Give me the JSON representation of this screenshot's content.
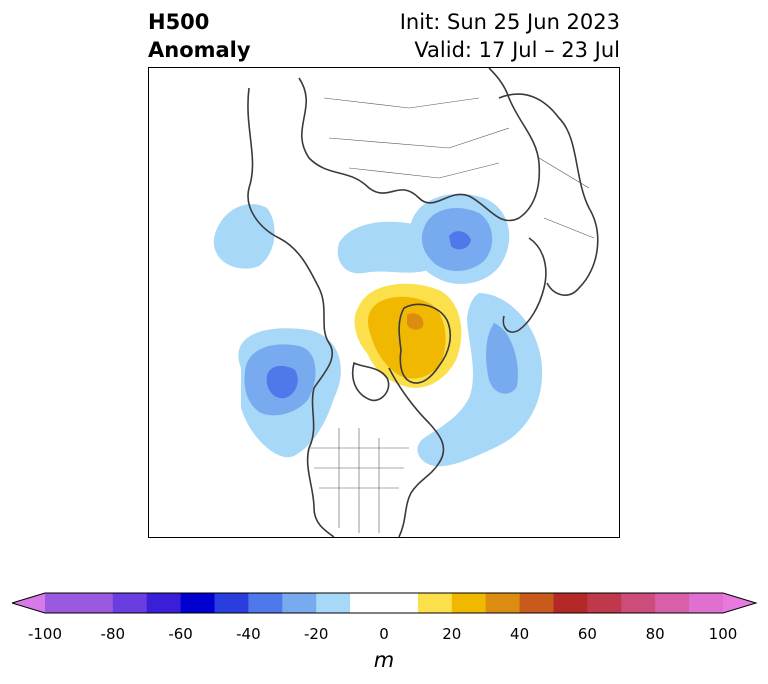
{
  "title": {
    "left_line1": "H500",
    "left_line2": "Anomaly",
    "init": "Init: Sun 25 Jun 2023",
    "valid": "Valid: 17 Jul – 23 Jul"
  },
  "colorbar": {
    "unit": "m",
    "ticks": [
      "-100",
      "-80",
      "-60",
      "-40",
      "-20",
      "0",
      "20",
      "40",
      "60",
      "80",
      "100"
    ],
    "low_extend_color": "#d77ae8",
    "high_extend_color": "#e87ade",
    "bins": [
      {
        "range": [
          -100,
          -90
        ],
        "color": "#9b59e0"
      },
      {
        "range": [
          -90,
          -80
        ],
        "color": "#9b59e0"
      },
      {
        "range": [
          -80,
          -70
        ],
        "color": "#6a3de0"
      },
      {
        "range": [
          -70,
          -60
        ],
        "color": "#3a1fd8"
      },
      {
        "range": [
          -60,
          -50
        ],
        "color": "#0000d0"
      },
      {
        "range": [
          -50,
          -40
        ],
        "color": "#2a3ee0"
      },
      {
        "range": [
          -40,
          -30
        ],
        "color": "#4f78ea"
      },
      {
        "range": [
          -30,
          -20
        ],
        "color": "#78aaf0"
      },
      {
        "range": [
          -20,
          -10
        ],
        "color": "#a8d8f8"
      },
      {
        "range": [
          -10,
          10
        ],
        "color": "#ffffff"
      },
      {
        "range": [
          10,
          20
        ],
        "color": "#fbe04c"
      },
      {
        "range": [
          20,
          30
        ],
        "color": "#f0b800"
      },
      {
        "range": [
          30,
          40
        ],
        "color": "#dc8c10"
      },
      {
        "range": [
          40,
          50
        ],
        "color": "#c85a1c"
      },
      {
        "range": [
          50,
          60
        ],
        "color": "#b42828"
      },
      {
        "range": [
          60,
          70
        ],
        "color": "#c0384c"
      },
      {
        "range": [
          70,
          80
        ],
        "color": "#cc4c7c"
      },
      {
        "range": [
          80,
          90
        ],
        "color": "#d860a8"
      },
      {
        "range": [
          90,
          100
        ],
        "color": "#e070d0"
      }
    ]
  },
  "map": {
    "projection": "north-polar-stereographic",
    "land_outline_color": "#3a3a3a",
    "anomaly_features": [
      {
        "name": "greenland-ridge",
        "sign": "positive",
        "peak_m": 40
      },
      {
        "name": "northeast-pacific-trough",
        "sign": "negative",
        "peak_m": -40
      },
      {
        "name": "siberian-trough",
        "sign": "negative",
        "peak_m": -50
      },
      {
        "name": "north-atlantic-trough",
        "sign": "negative",
        "peak_m": -30
      }
    ]
  }
}
